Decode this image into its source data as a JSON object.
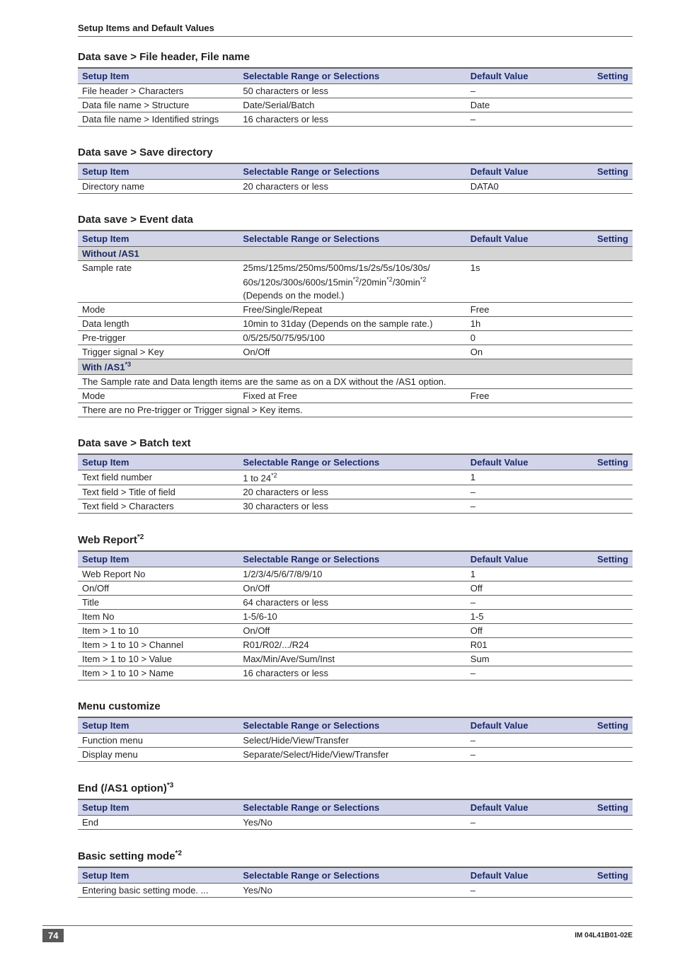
{
  "header": {
    "section_title": "Setup Items and Default Values"
  },
  "columns": {
    "setup_item": "Setup Item",
    "range": "Selectable Range or Selections",
    "default": "Default Value",
    "setting": "Setting"
  },
  "colors": {
    "header_bg": "#d2d5e9",
    "header_text": "#1b2a6b",
    "subhdr_bg": "#d5d5d5",
    "border": "#606060",
    "page_bg": "#ffffff",
    "pagenum_bg": "#595959",
    "pagenum_text": "#ffffff"
  },
  "tables": [
    {
      "title": "Data save > File header, File name",
      "rows": [
        {
          "item": "File header > Characters",
          "range": "50 characters or less",
          "default": "–"
        },
        {
          "item": "Data file name > Structure",
          "range": "Date/Serial/Batch",
          "default": "Date"
        },
        {
          "item": "Data file name > Identified strings",
          "range": "16 characters or less",
          "default": "–"
        }
      ]
    },
    {
      "title": "Data save > Save directory",
      "rows": [
        {
          "item": "Directory name",
          "range": "20 characters or less",
          "default": "DATA0"
        }
      ]
    },
    {
      "title": "Data save > Event data",
      "sub1": "Without /AS1",
      "rows1": [
        {
          "item": "Sample rate",
          "range_l1": "25ms/125ms/250ms/500ms/1s/2s/5s/10s/30s/",
          "range_l2": "60s/120s/300s/600s/15min",
          "range_sup": "*2",
          "range_l2b": "/20min",
          "range_l2c": "/30min",
          "range_l3": " (Depends on the model.)",
          "default": "1s"
        },
        {
          "item": "Mode",
          "range": "Free/Single/Repeat",
          "default": "Free"
        },
        {
          "item": "Data length",
          "range": "10min to 31day (Depends on the sample rate.)",
          "default": "1h"
        },
        {
          "item": "Pre-trigger",
          "range": "0/5/25/50/75/95/100",
          "default": "0"
        },
        {
          "item": "Trigger signal > Key",
          "range": "On/Off",
          "default": "On"
        }
      ],
      "sub2": "With /AS1",
      "sub2_sup": "*3",
      "note1": "The Sample rate and Data length items are the same as on a DX without the /AS1 option.",
      "rows2": [
        {
          "item": "Mode",
          "range": "Fixed at Free",
          "default": "Free"
        }
      ],
      "note2": "There are no Pre-trigger or Trigger signal > Key items."
    },
    {
      "title": "Data save > Batch text",
      "rows": [
        {
          "item": "Text field number",
          "range": "1 to 24",
          "range_sup": "*2",
          "default": "1"
        },
        {
          "item": "Text field > Title of field",
          "range": "20 characters or less",
          "default": "–"
        },
        {
          "item": "Text field > Characters",
          "range": "30 characters or less",
          "default": "–"
        }
      ]
    },
    {
      "title": "Web Report",
      "title_sup": "*2",
      "rows": [
        {
          "item": "Web Report No",
          "range": "1/2/3/4/5/6/7/8/9/10",
          "default": "1"
        },
        {
          "item": "On/Off",
          "range": "On/Off",
          "default": "Off"
        },
        {
          "item": "Title",
          "range": "64 characters or less",
          "default": "–"
        },
        {
          "item": "Item No",
          "range": "1-5/6-10",
          "default": "1-5"
        },
        {
          "item": "Item > 1 to 10",
          "range": "On/Off",
          "default": "Off"
        },
        {
          "item": "Item > 1 to 10 > Channel",
          "range": "R01/R02/.../R24",
          "default": "R01"
        },
        {
          "item": "Item > 1 to 10 > Value",
          "range": "Max/Min/Ave/Sum/Inst",
          "default": "Sum"
        },
        {
          "item": "Item > 1 to 10 > Name",
          "range": "16 characters or less",
          "default": "–"
        }
      ]
    },
    {
      "title": "Menu customize",
      "rows": [
        {
          "item": "Function menu",
          "range": "Select/Hide/View/Transfer",
          "default": "–"
        },
        {
          "item": "Display menu",
          "range": "Separate/Select/Hide/View/Transfer",
          "default": "–"
        }
      ]
    },
    {
      "title": "End (/AS1 option)",
      "title_sup": "*3",
      "rows": [
        {
          "item": "End",
          "range": "Yes/No",
          "default": "–"
        }
      ]
    },
    {
      "title": "Basic setting mode",
      "title_sup": "*2",
      "rows": [
        {
          "item": "Entering basic setting mode. ...",
          "range": "Yes/No",
          "default": "–"
        }
      ]
    }
  ],
  "footer": {
    "page_number": "74",
    "doc_id": "IM 04L41B01-02E"
  }
}
